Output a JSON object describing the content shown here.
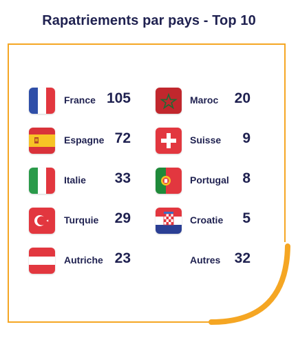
{
  "chart_data": {
    "type": "table",
    "title": "Rapatriements par pays - Top 10",
    "rows": [
      {
        "country": "France",
        "value": "105",
        "flag": "france-flag-icon"
      },
      {
        "country": "Espagne",
        "value": "72",
        "flag": "spain-flag-icon"
      },
      {
        "country": "Italie",
        "value": "33",
        "flag": "italy-flag-icon"
      },
      {
        "country": "Turquie",
        "value": "29",
        "flag": "turkey-flag-icon"
      },
      {
        "country": "Autriche",
        "value": "23",
        "flag": "austria-flag-icon"
      },
      {
        "country": "Maroc",
        "value": "20",
        "flag": "morocco-flag-icon"
      },
      {
        "country": "Suisse",
        "value": "9",
        "flag": "switzerland-flag-icon"
      },
      {
        "country": "Portugal",
        "value": "8",
        "flag": "portugal-flag-icon"
      },
      {
        "country": "Croatie",
        "value": "5",
        "flag": "croatia-flag-icon"
      },
      {
        "country": "Autres",
        "value": "32",
        "flag": ""
      }
    ]
  },
  "colors": {
    "title": "#1f2150",
    "frame": "#f5a623"
  }
}
